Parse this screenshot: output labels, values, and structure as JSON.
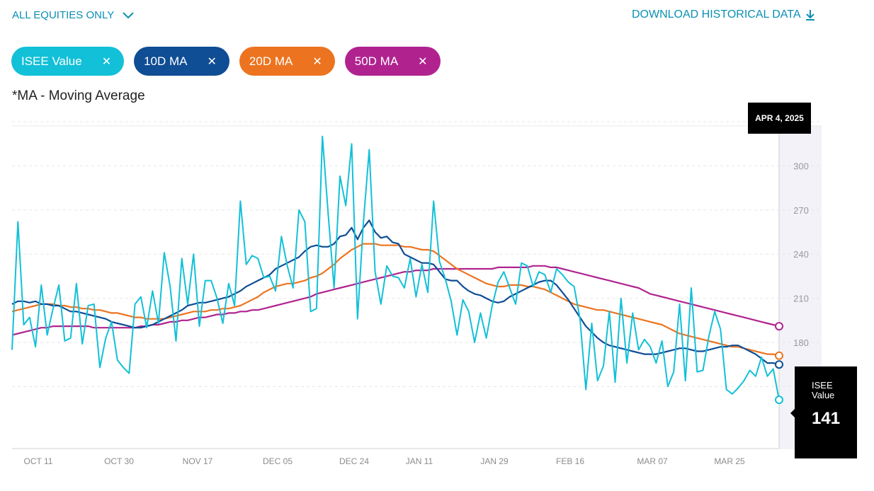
{
  "header": {
    "filter_label": "ALL EQUITIES ONLY",
    "download_label": "DOWNLOAD HISTORICAL DATA",
    "note": "*MA - Moving Average"
  },
  "chips": [
    {
      "label": "ISEE Value",
      "color": "#12c0d8"
    },
    {
      "label": "10D MA",
      "color": "#0f4d94"
    },
    {
      "label": "20D MA",
      "color": "#ec7420"
    },
    {
      "label": "50D MA",
      "color": "#b0238f"
    }
  ],
  "tooltip": {
    "date": "APR 4, 2025",
    "label": "ISEE Value",
    "value": "141"
  },
  "chart_data": {
    "type": "line",
    "x_ticks": [
      "OCT 11",
      "OCT 30",
      "NOV 17",
      "DEC 05",
      "DEC 24",
      "JAN 11",
      "JAN 29",
      "FEB 16",
      "MAR 07",
      "MAR 25"
    ],
    "y_ticks": [
      180,
      210,
      240,
      270,
      300
    ],
    "ylim": [
      120,
      330
    ],
    "series": [
      {
        "name": "ISEE Value",
        "color": "#12c0d8",
        "values": [
          175,
          262,
          192,
          197,
          177,
          219,
          185,
          203,
          219,
          181,
          183,
          220,
          179,
          205,
          206,
          163,
          183,
          194,
          168,
          163,
          159,
          206,
          211,
          190,
          215,
          193,
          241,
          218,
          181,
          237,
          206,
          240,
          191,
          222,
          222,
          210,
          193,
          220,
          205,
          276,
          233,
          239,
          237,
          224,
          225,
          215,
          252,
          232,
          217,
          270,
          262,
          201,
          203,
          320,
          267,
          217,
          293,
          273,
          315,
          196,
          261,
          311,
          228,
          206,
          232,
          225,
          224,
          217,
          237,
          211,
          233,
          214,
          276,
          235,
          223,
          208,
          185,
          209,
          201,
          180,
          200,
          183,
          205,
          221,
          228,
          217,
          206,
          234,
          232,
          218,
          228,
          226,
          214,
          230,
          226,
          221,
          218,
          196,
          148,
          193,
          154,
          164,
          201,
          153,
          210,
          166,
          200,
          175,
          182,
          177,
          166,
          181,
          150,
          160,
          206,
          154,
          217,
          160,
          161,
          184,
          201,
          189,
          148,
          145,
          149,
          154,
          161,
          157,
          170,
          157,
          162,
          141
        ],
        "offsets": [
          -3,
          -2,
          -2,
          -2,
          -3,
          -3,
          -3,
          -2,
          -2,
          -2,
          -3,
          -3,
          -3,
          -2,
          -2,
          -2,
          -2,
          -2,
          -3,
          -3,
          -3,
          -2,
          -2,
          -2,
          -2,
          -3,
          -3,
          -3,
          -3,
          -2,
          -3,
          -3,
          -3,
          -3,
          -2,
          -2,
          -2,
          -3,
          -3,
          -3,
          -2,
          -2,
          -2,
          -2,
          -3,
          -3,
          -3,
          -2,
          -2,
          -2,
          -2,
          -2,
          -3,
          -3,
          -3,
          -2,
          -2,
          -2,
          -2,
          -3,
          -3,
          -3,
          -3,
          -2,
          -2,
          -2,
          -2,
          -2,
          -3,
          -3,
          -3,
          -2,
          -2,
          -2,
          -2,
          -2,
          -3,
          -3,
          -3,
          -2,
          -2,
          -2,
          -2,
          -3,
          -3,
          -3,
          -2,
          -2,
          -2,
          -2,
          -2,
          -3,
          -3,
          -3,
          -3,
          -2,
          -2,
          -2,
          -2,
          -3,
          -3,
          -3,
          -2,
          -2,
          -2,
          -2,
          -2,
          -3,
          -3,
          -3,
          -2,
          -2,
          -2,
          -2,
          -2,
          -3,
          -3,
          -3,
          -2,
          -2,
          -2,
          -2,
          -2,
          -3,
          -3,
          -3,
          -2,
          -2,
          -2,
          -2,
          -3,
          -3
        ]
      },
      {
        "name": "10D MA",
        "color": "#0f4d94",
        "values": [
          206,
          208,
          208,
          207,
          208,
          206,
          206,
          205,
          205,
          203,
          201,
          201,
          200,
          199,
          198,
          197,
          196,
          194,
          193,
          192,
          191,
          190,
          190,
          191,
          192,
          194,
          196,
          198,
          200,
          202,
          205,
          206,
          207,
          207,
          208,
          209,
          210,
          211,
          213,
          215,
          218,
          220,
          222,
          224,
          226,
          230,
          232,
          234,
          236,
          238,
          242,
          245,
          246,
          245,
          245,
          247,
          252,
          253,
          258,
          250,
          258,
          263,
          255,
          251,
          252,
          248,
          247,
          240,
          238,
          236,
          234,
          234,
          233,
          228,
          223,
          222,
          222,
          218,
          215,
          213,
          212,
          210,
          208,
          207,
          208,
          211,
          213,
          215,
          217,
          219,
          221,
          222,
          222,
          219,
          214,
          209,
          203,
          197,
          191,
          187,
          183,
          180,
          178,
          177,
          176,
          175,
          174,
          173,
          172,
          172,
          172,
          173,
          174,
          175,
          176,
          176,
          175,
          174,
          174,
          175,
          176,
          177,
          177,
          178,
          178,
          176,
          174,
          172,
          169,
          166,
          166,
          165
        ],
        "offsets": []
      },
      {
        "name": "20D MA",
        "color": "#ec7420",
        "values": [
          201,
          202,
          203,
          204,
          205,
          206,
          206,
          206,
          205,
          205,
          204,
          204,
          203,
          203,
          202,
          202,
          201,
          200,
          200,
          199,
          198,
          197,
          197,
          196,
          196,
          196,
          196,
          197,
          198,
          199,
          200,
          201,
          201,
          201,
          202,
          202,
          203,
          203,
          204,
          205,
          207,
          209,
          211,
          214,
          216,
          218,
          219,
          220,
          220,
          221,
          222,
          224,
          225,
          227,
          230,
          233,
          237,
          240,
          243,
          245,
          247,
          247,
          247,
          246,
          246,
          246,
          246,
          245,
          245,
          244,
          243,
          243,
          242,
          239,
          236,
          233,
          230,
          228,
          226,
          224,
          222,
          220,
          219,
          218,
          218,
          219,
          219,
          219,
          218,
          218,
          217,
          216,
          214,
          212,
          210,
          208,
          206,
          205,
          204,
          203,
          202,
          202,
          201,
          200,
          199,
          198,
          197,
          196,
          195,
          194,
          193,
          192,
          190,
          188,
          186,
          185,
          184,
          183,
          182,
          181,
          180,
          179,
          178,
          177,
          177,
          176,
          175,
          174,
          173,
          172,
          172,
          171
        ],
        "offsets": []
      },
      {
        "name": "50D MA",
        "color": "#b0238f",
        "values": [
          185,
          186,
          187,
          188,
          189,
          190,
          190,
          191,
          191,
          191,
          191,
          191,
          191,
          191,
          190,
          190,
          190,
          190,
          190,
          190,
          190,
          190,
          191,
          191,
          192,
          192,
          193,
          194,
          194,
          195,
          195,
          196,
          197,
          197,
          198,
          199,
          199,
          200,
          200,
          201,
          201,
          202,
          202,
          203,
          204,
          205,
          206,
          207,
          208,
          209,
          210,
          211,
          213,
          214,
          215,
          216,
          217,
          218,
          219,
          220,
          221,
          222,
          223,
          224,
          225,
          226,
          227,
          228,
          228,
          229,
          229,
          229,
          230,
          230,
          230,
          230,
          230,
          230,
          230,
          230,
          230,
          230,
          230,
          231,
          231,
          231,
          231,
          231,
          231,
          232,
          232,
          232,
          231,
          231,
          230,
          229,
          228,
          227,
          226,
          225,
          224,
          223,
          222,
          221,
          220,
          219,
          218,
          217,
          215,
          213,
          212,
          211,
          210,
          209,
          208,
          207,
          206,
          205,
          204,
          203,
          202,
          201,
          200,
          199,
          198,
          197,
          196,
          195,
          194,
          193,
          192,
          191
        ],
        "offsets": []
      }
    ]
  }
}
